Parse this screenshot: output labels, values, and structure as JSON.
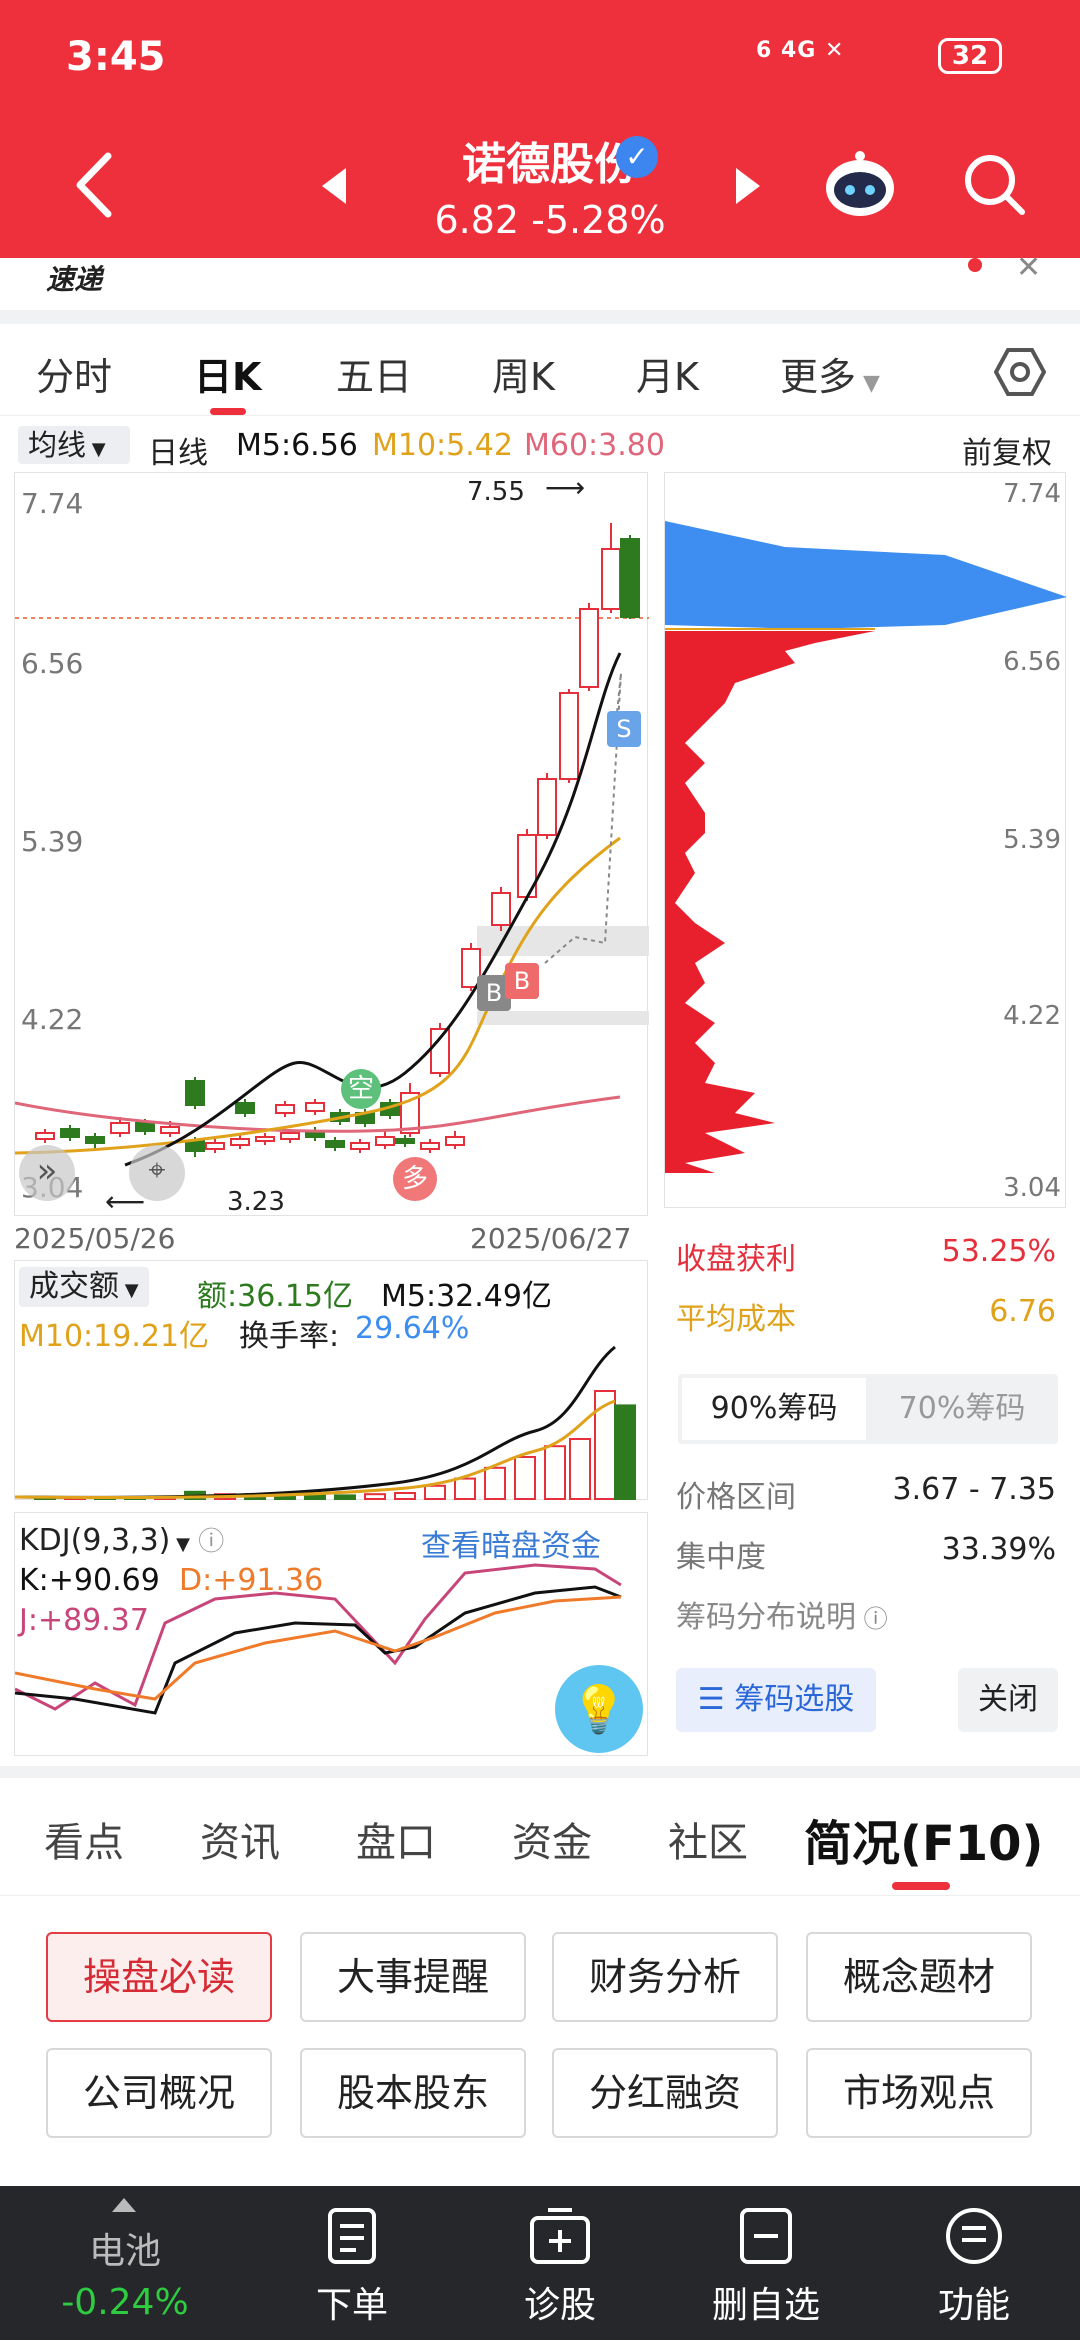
{
  "status_bar": {
    "time": "3:45",
    "network": "6 4G ✕",
    "battery": "32"
  },
  "header": {
    "stock_name": "诺德股份",
    "price_line": "6.82 -5.28%"
  },
  "banner": {
    "text": "速递"
  },
  "period_tabs": [
    "分时",
    "日K",
    "五日",
    "周K",
    "月K",
    "更多"
  ],
  "ma_bar": {
    "selector": "均线",
    "line_label": "日线",
    "ma5": "M5:6.56",
    "ma10": "M10:5.42",
    "ma60": "M60:3.80",
    "adjust": "前复权"
  },
  "kline": {
    "y_ticks": [
      "7.74",
      "6.56",
      "5.39",
      "4.22",
      "3.04"
    ],
    "high_label": "7.55",
    "low_label": "3.23",
    "date_start": "2025/05/26",
    "date_end": "2025/06/27",
    "marks": {
      "kong": "空",
      "duo": "多",
      "buy": "B",
      "sell": "S"
    },
    "colors": {
      "up": "#e5303c",
      "down": "#2d7a1f",
      "ma5": "#111111",
      "ma10": "#e0a21a",
      "ma60": "#e0667a"
    }
  },
  "chip_panel": {
    "y_ticks": [
      "7.74",
      "6.56",
      "5.39",
      "4.22",
      "3.04"
    ],
    "profit_label": "收盘获利",
    "profit_value": "53.25%",
    "avg_cost_label": "平均成本",
    "avg_cost_value": "6.76",
    "tab_90": "90%筹码",
    "tab_70": "70%筹码",
    "range_label": "价格区间",
    "range_value": "3.67 - 7.35",
    "concentration_label": "集中度",
    "concentration_value": "33.39%",
    "explain_label": "筹码分布说明",
    "pick_button": "筹码选股",
    "close_button": "关闭"
  },
  "volume": {
    "selector": "成交额",
    "amount": "额:36.15亿",
    "m5": "M5:32.49亿",
    "m10": "M10:19.21亿",
    "turnover_label": "换手率:",
    "turnover_value": "29.64%"
  },
  "kdj": {
    "selector": "KDJ(9,3,3)",
    "hidden_funds_link": "查看暗盘资金",
    "k": "K:+90.69",
    "d": "D:+91.36",
    "j": "J:+89.37"
  },
  "info_tabs": [
    "看点",
    "资讯",
    "盘口",
    "资金",
    "社区",
    "简况(F10)"
  ],
  "f10_buttons": [
    "操盘必读",
    "大事提醒",
    "财务分析",
    "概念题材",
    "公司概况",
    "股本股东",
    "分红融资",
    "市场观点"
  ],
  "bottom_nav": {
    "index_name": "电池",
    "index_change": "-0.24%",
    "items": [
      "下单",
      "诊股",
      "删自选",
      "功能"
    ]
  }
}
